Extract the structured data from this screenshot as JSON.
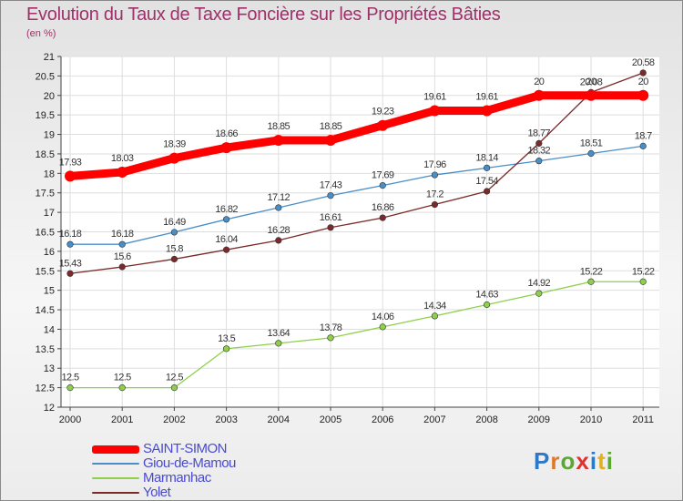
{
  "title": "Evolution du Taux de Taxe Foncière sur les Propriétés Bâties",
  "subtitle": "(en %)",
  "logo": {
    "letters": [
      {
        "ch": "P",
        "color": "#2e78c8"
      },
      {
        "ch": "r",
        "color": "#e0782a"
      },
      {
        "ch": "o",
        "color": "#5aa832"
      },
      {
        "ch": "x",
        "color": "#e03030"
      },
      {
        "ch": "i",
        "color": "#2e78c8"
      },
      {
        "ch": "t",
        "color": "#e0b020"
      },
      {
        "ch": "i",
        "color": "#5aa832"
      }
    ]
  },
  "chart_data": {
    "type": "line",
    "title": "Evolution du Taux de Taxe Foncière sur les Propriétés Bâties",
    "subtitle": "(en %)",
    "x": [
      "2000",
      "2001",
      "2002",
      "2003",
      "2004",
      "2005",
      "2006",
      "2007",
      "2008",
      "2009",
      "2010",
      "2011"
    ],
    "ylim": [
      12,
      21
    ],
    "yticks": [
      "12",
      "12.5",
      "13",
      "13.5",
      "14",
      "14.5",
      "15",
      "15.5",
      "16",
      "16.5",
      "17",
      "17.5",
      "18",
      "18.5",
      "19",
      "19.5",
      "20",
      "20.5",
      "21"
    ],
    "grid": true,
    "legend_position": "bottom-left",
    "series": [
      {
        "name": "SAINT-SIMON",
        "color": "#ff0000",
        "values": [
          17.93,
          18.03,
          18.39,
          18.66,
          18.85,
          18.85,
          19.23,
          19.61,
          19.61,
          20,
          20,
          20
        ],
        "labels": [
          "17.93",
          "18.03",
          "18.39",
          "18.66",
          "18.85",
          "18.85",
          "19.23",
          "19.61",
          "19.61",
          "20",
          "20",
          "20"
        ]
      },
      {
        "name": "Giou-de-Mamou",
        "color": "#4a8ec8",
        "values": [
          16.18,
          16.18,
          16.49,
          16.82,
          17.12,
          17.43,
          17.69,
          17.96,
          18.14,
          18.32,
          18.51,
          18.7
        ],
        "labels": [
          "16.18",
          "16.18",
          "16.49",
          "16.82",
          "17.12",
          "17.43",
          "17.69",
          "17.96",
          "18.14",
          "18.32",
          "18.51",
          "18.7"
        ]
      },
      {
        "name": "Marmanhac",
        "color": "#8ed04a",
        "values": [
          12.5,
          12.5,
          12.5,
          13.5,
          13.64,
          13.78,
          14.06,
          14.34,
          14.63,
          14.92,
          15.22,
          15.22
        ],
        "labels": [
          "12.5",
          "12.5",
          "12.5",
          "13.5",
          "13.64",
          "13.78",
          "14.06",
          "14.34",
          "14.63",
          "14.92",
          "15.22",
          "15.22"
        ]
      },
      {
        "name": "Yolet",
        "color": "#7a2a2a",
        "values": [
          15.43,
          15.6,
          15.8,
          16.04,
          16.28,
          16.61,
          16.86,
          17.2,
          17.54,
          18.77,
          20.08,
          20.58
        ],
        "labels": [
          "15.43",
          "15.6",
          "15.8",
          "16.04",
          "16.28",
          "16.61",
          "16.86",
          "17.2",
          "17.54",
          "18.77",
          "20.08",
          "20.58"
        ]
      }
    ]
  }
}
